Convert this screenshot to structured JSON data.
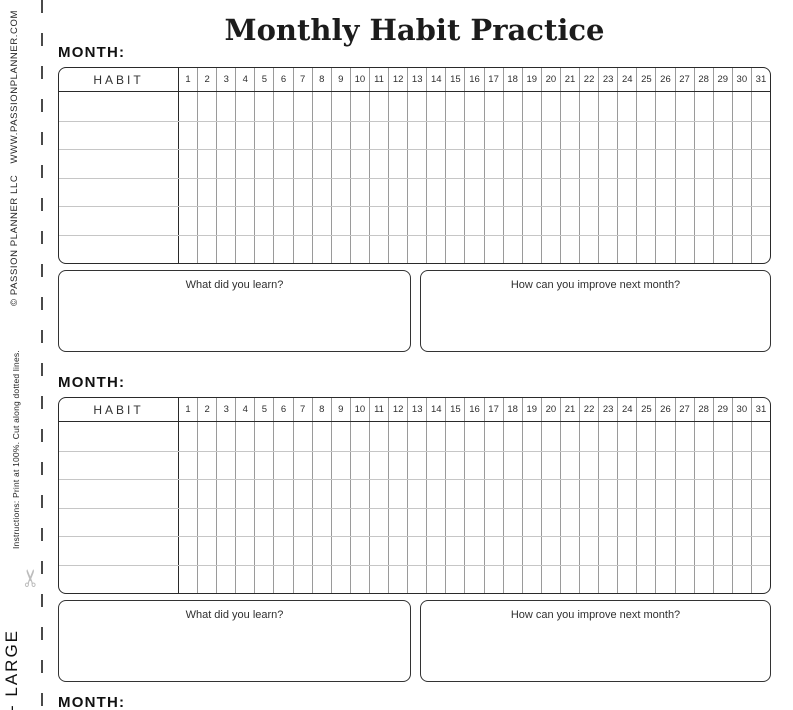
{
  "title": "Monthly Habit Practice",
  "sidebar": {
    "copyright": "© PASSION PLANNER LLC",
    "website": "WWW.PASSIONPLANNER.COM",
    "instructions": "Instructions: Print at 100%. Cut along dotted lines.",
    "size_label": "- LARGE",
    "scissors_icon": "✂"
  },
  "section": {
    "month_label": "MONTH:",
    "habit_header": "HABIT",
    "days": [
      1,
      2,
      3,
      4,
      5,
      6,
      7,
      8,
      9,
      10,
      11,
      12,
      13,
      14,
      15,
      16,
      17,
      18,
      19,
      20,
      21,
      22,
      23,
      24,
      25,
      26,
      27,
      28,
      29,
      30,
      31
    ],
    "body_rows": 6,
    "learn_prompt": "What did you learn?",
    "improve_prompt": "How can you improve next month?"
  },
  "colors": {
    "grid_dark": "#2a2a2a",
    "grid_day_line": "#9a9a9a",
    "grid_row_line": "#c6c6c6",
    "cut_line": "#4a4a4a",
    "scissors_gray": "#bdbdbd"
  }
}
